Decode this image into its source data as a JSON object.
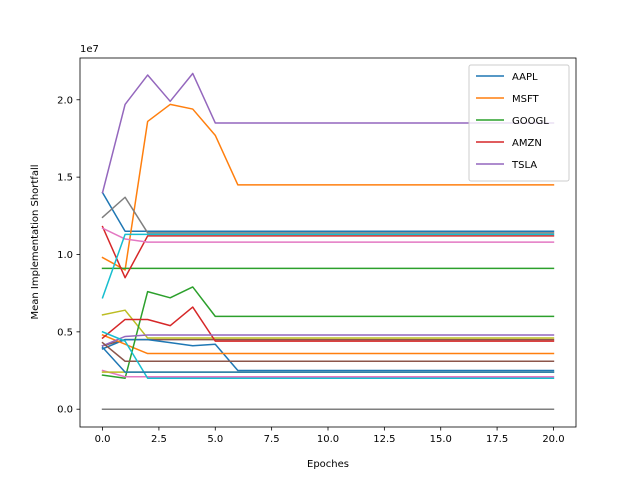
{
  "chart_data": {
    "type": "line",
    "title": "",
    "xlabel": "Epoches",
    "ylabel": "Mean Implementation Shortfall",
    "y_offset_label": "1e7",
    "xlim": [
      -1,
      21
    ],
    "ylim": [
      -1150000,
      22700000
    ],
    "xticks": [
      0.0,
      2.5,
      5.0,
      7.5,
      10.0,
      12.5,
      15.0,
      17.5,
      20.0
    ],
    "xtick_labels": [
      "0.0",
      "2.5",
      "5.0",
      "7.5",
      "10.0",
      "12.5",
      "15.0",
      "17.5",
      "20.0"
    ],
    "yticks": [
      0,
      5000000,
      10000000,
      15000000,
      20000000
    ],
    "ytick_labels": [
      "0.0",
      "0.5",
      "1.0",
      "1.5",
      "2.0"
    ],
    "grid": false,
    "legend_position": "top-right",
    "x": [
      0,
      1,
      2,
      3,
      4,
      5,
      6,
      7,
      8,
      9,
      10,
      11,
      12,
      13,
      14,
      15,
      16,
      17,
      18,
      19,
      20
    ],
    "series": [
      {
        "name": "AAPL",
        "color": "#1f77b4",
        "values": [
          14000000,
          11500000,
          11500000,
          11500000,
          11500000,
          11500000,
          11500000,
          11500000,
          11500000,
          11500000,
          11500000,
          11500000,
          11500000,
          11500000,
          11500000,
          11500000,
          11500000,
          11500000,
          11500000,
          11500000,
          11500000
        ]
      },
      {
        "name": "MSFT",
        "color": "#ff7f0e",
        "values": [
          9800000,
          9000000,
          18600000,
          19700000,
          19400000,
          17700000,
          14500000,
          14500000,
          14500000,
          14500000,
          14500000,
          14500000,
          14500000,
          14500000,
          14500000,
          14500000,
          14500000,
          14500000,
          14500000,
          14500000,
          14500000
        ]
      },
      {
        "name": "GOOGL",
        "color": "#2ca02c",
        "values": [
          9100000,
          9100000,
          9100000,
          9100000,
          9100000,
          9100000,
          9100000,
          9100000,
          9100000,
          9100000,
          9100000,
          9100000,
          9100000,
          9100000,
          9100000,
          9100000,
          9100000,
          9100000,
          9100000,
          9100000,
          9100000
        ]
      },
      {
        "name": "AMZN",
        "color": "#d62728",
        "values": [
          11800000,
          8500000,
          11200000,
          11200000,
          11200000,
          11200000,
          11200000,
          11200000,
          11200000,
          11200000,
          11200000,
          11200000,
          11200000,
          11200000,
          11200000,
          11200000,
          11200000,
          11200000,
          11200000,
          11200000,
          11200000
        ]
      },
      {
        "name": "TSLA",
        "color": "#9467bd",
        "values": [
          14000000,
          19700000,
          21600000,
          19900000,
          21700000,
          18500000,
          18500000,
          18500000,
          18500000,
          18500000,
          18500000,
          18500000,
          18500000,
          18500000,
          18500000,
          18500000,
          18500000,
          18500000,
          18500000,
          18500000,
          18500000
        ]
      },
      {
        "color": "#8c564b",
        "values": [
          4100000,
          4500000,
          4500000,
          4500000,
          4500000,
          4500000,
          4500000,
          4500000,
          4500000,
          4500000,
          4500000,
          4500000,
          4500000,
          4500000,
          4500000,
          4500000,
          4500000,
          4500000,
          4500000,
          4500000,
          4500000
        ]
      },
      {
        "color": "#e377c2",
        "values": [
          11700000,
          11000000,
          10800000,
          10800000,
          10800000,
          10800000,
          10800000,
          10800000,
          10800000,
          10800000,
          10800000,
          10800000,
          10800000,
          10800000,
          10800000,
          10800000,
          10800000,
          10800000,
          10800000,
          10800000,
          10800000
        ]
      },
      {
        "color": "#7f7f7f",
        "values": [
          12400000,
          13700000,
          11400000,
          11400000,
          11400000,
          11400000,
          11400000,
          11400000,
          11400000,
          11400000,
          11400000,
          11400000,
          11400000,
          11400000,
          11400000,
          11400000,
          11400000,
          11400000,
          11400000,
          11400000,
          11400000
        ]
      },
      {
        "color": "#bcbd22",
        "values": [
          6100000,
          6400000,
          4600000,
          4600000,
          4600000,
          4600000,
          4600000,
          4600000,
          4600000,
          4600000,
          4600000,
          4600000,
          4600000,
          4600000,
          4600000,
          4600000,
          4600000,
          4600000,
          4600000,
          4600000,
          4600000
        ]
      },
      {
        "color": "#17becf",
        "values": [
          7200000,
          11300000,
          11300000,
          11300000,
          11300000,
          11300000,
          11300000,
          11300000,
          11300000,
          11300000,
          11300000,
          11300000,
          11300000,
          11300000,
          11300000,
          11300000,
          11300000,
          11300000,
          11300000,
          11300000,
          11300000
        ]
      },
      {
        "color": "#1f77b4",
        "values": [
          3900000,
          4500000,
          4500000,
          4300000,
          4100000,
          4200000,
          2500000,
          2500000,
          2500000,
          2500000,
          2500000,
          2500000,
          2500000,
          2500000,
          2500000,
          2500000,
          2500000,
          2500000,
          2500000,
          2500000,
          2500000
        ]
      },
      {
        "color": "#ff7f0e",
        "values": [
          4800000,
          4200000,
          3600000,
          3600000,
          3600000,
          3600000,
          3600000,
          3600000,
          3600000,
          3600000,
          3600000,
          3600000,
          3600000,
          3600000,
          3600000,
          3600000,
          3600000,
          3600000,
          3600000,
          3600000,
          3600000
        ]
      },
      {
        "color": "#2ca02c",
        "values": [
          2200000,
          2000000,
          7600000,
          7200000,
          7900000,
          6000000,
          6000000,
          6000000,
          6000000,
          6000000,
          6000000,
          6000000,
          6000000,
          6000000,
          6000000,
          6000000,
          6000000,
          6000000,
          6000000,
          6000000,
          6000000
        ]
      },
      {
        "color": "#d62728",
        "values": [
          4600000,
          5800000,
          5800000,
          5400000,
          6600000,
          4400000,
          4400000,
          4400000,
          4400000,
          4400000,
          4400000,
          4400000,
          4400000,
          4400000,
          4400000,
          4400000,
          4400000,
          4400000,
          4400000,
          4400000,
          4400000
        ]
      },
      {
        "color": "#9467bd",
        "values": [
          4100000,
          4700000,
          4800000,
          4800000,
          4800000,
          4800000,
          4800000,
          4800000,
          4800000,
          4800000,
          4800000,
          4800000,
          4800000,
          4800000,
          4800000,
          4800000,
          4800000,
          4800000,
          4800000,
          4800000,
          4800000
        ]
      },
      {
        "color": "#8c564b",
        "values": [
          4300000,
          3100000,
          3100000,
          3100000,
          3100000,
          3100000,
          3100000,
          3100000,
          3100000,
          3100000,
          3100000,
          3100000,
          3100000,
          3100000,
          3100000,
          3100000,
          3100000,
          3100000,
          3100000,
          3100000,
          3100000
        ]
      },
      {
        "color": "#e377c2",
        "values": [
          2500000,
          2100000,
          2100000,
          2100000,
          2100000,
          2100000,
          2100000,
          2100000,
          2100000,
          2100000,
          2100000,
          2100000,
          2100000,
          2100000,
          2100000,
          2100000,
          2100000,
          2100000,
          2100000,
          2100000,
          2100000
        ]
      },
      {
        "color": "#7f7f7f",
        "values": [
          0,
          0,
          0,
          0,
          0,
          0,
          0,
          0,
          0,
          0,
          0,
          0,
          0,
          0,
          0,
          0,
          0,
          0,
          0,
          0,
          0
        ]
      },
      {
        "color": "#bcbd22",
        "values": [
          2400000,
          2400000,
          2400000,
          2400000,
          2400000,
          2400000,
          2400000,
          2400000,
          2400000,
          2400000,
          2400000,
          2400000,
          2400000,
          2400000,
          2400000,
          2400000,
          2400000,
          2400000,
          2400000,
          2400000,
          2400000
        ]
      },
      {
        "color": "#17becf",
        "values": [
          5000000,
          4400000,
          2000000,
          2000000,
          2000000,
          2000000,
          2000000,
          2000000,
          2000000,
          2000000,
          2000000,
          2000000,
          2000000,
          2000000,
          2000000,
          2000000,
          2000000,
          2000000,
          2000000,
          2000000,
          2000000
        ]
      },
      {
        "color": "#1f77b4",
        "values": [
          4000000,
          2400000,
          2400000,
          2400000,
          2400000,
          2400000,
          2400000,
          2400000,
          2400000,
          2400000,
          2400000,
          2400000,
          2400000,
          2400000,
          2400000,
          2400000,
          2400000,
          2400000,
          2400000,
          2400000,
          2400000
        ]
      }
    ]
  }
}
